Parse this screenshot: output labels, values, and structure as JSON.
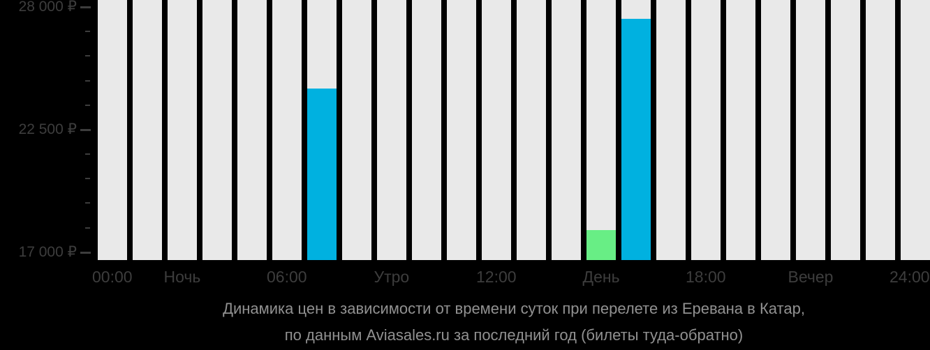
{
  "colors": {
    "background": "#000000",
    "bar_background": "#e9e9e9",
    "bar_blue": "#00b1e0",
    "bar_green": "#68ee85",
    "axis_text": "#3d3d3d",
    "caption_text": "#919191"
  },
  "caption": {
    "line1": "Динамика цен в зависимости от времени суток при перелете из Еревана в Катар,",
    "line2": "по данным Aviasales.ru за последний год (билеты туда-обратно)"
  },
  "chart_data": {
    "type": "bar",
    "title": "Динамика цен в зависимости от времени суток при перелете из Еревана в Катар, по данным Aviasales.ru за последний год (билеты туда-обратно)",
    "xlabel": "",
    "ylabel": "",
    "currency": "₽",
    "ylim": [
      16650,
      28312
    ],
    "grid": false,
    "legend": false,
    "background_bars_full_height": true,
    "categories": [
      0,
      1,
      2,
      3,
      4,
      5,
      6,
      7,
      8,
      9,
      10,
      11,
      12,
      13,
      14,
      15,
      16,
      17,
      18,
      19,
      20,
      21,
      22,
      23
    ],
    "values": [
      null,
      null,
      null,
      null,
      null,
      null,
      24350,
      null,
      null,
      null,
      null,
      null,
      null,
      null,
      17980,
      27480,
      null,
      null,
      null,
      null,
      null,
      null,
      null,
      null
    ],
    "bar_colors_by_hour": {
      "6": "#00b1e0",
      "14": "#68ee85",
      "15": "#00b1e0"
    },
    "y_axis": {
      "major_ticks": [
        {
          "value": 28000,
          "label": "28 000 ₽"
        },
        {
          "value": 22500,
          "label": "22 500 ₽"
        },
        {
          "value": 17000,
          "label": "17 000 ₽"
        }
      ],
      "minor_tick_values": [
        26900,
        25800,
        24700,
        23600,
        21400,
        20300,
        19200,
        18100
      ]
    },
    "x_axis": {
      "labels": [
        {
          "text": "00:00",
          "slot": 0
        },
        {
          "text": "Ночь",
          "slot": 2
        },
        {
          "text": "06:00",
          "slot": 5
        },
        {
          "text": "Утро",
          "slot": 8
        },
        {
          "text": "12:00",
          "slot": 11
        },
        {
          "text": "День",
          "slot": 14
        },
        {
          "text": "18:00",
          "slot": 17
        },
        {
          "text": "Вечер",
          "slot": 20
        },
        {
          "text": "24:00",
          "slot": 23
        }
      ]
    }
  }
}
